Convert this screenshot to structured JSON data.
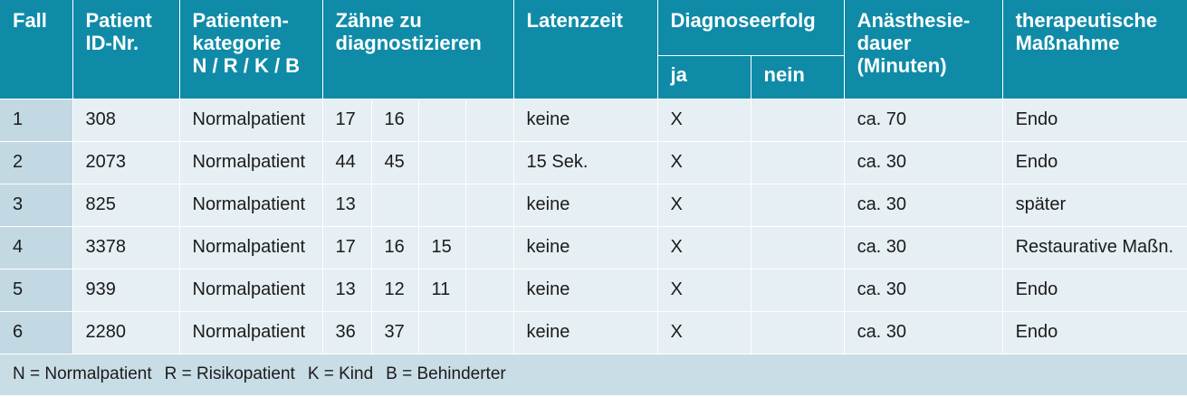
{
  "headers": {
    "fall": "Fall",
    "patient_id": [
      "Patient",
      "ID-Nr."
    ],
    "kategorie": [
      "Patienten-",
      "kategorie",
      "N / R / K / B"
    ],
    "zaehne": [
      "Zähne zu",
      "diagnostizieren"
    ],
    "latenz": "Latenzzeit",
    "diagnose": "Diagnoseerfolg",
    "ja": "ja",
    "nein": "nein",
    "anaesthesie": [
      "Anästhesie-",
      "dauer",
      "(Minuten)"
    ],
    "massnahme": [
      "therapeutische",
      "Maßnahme"
    ]
  },
  "rows": [
    {
      "fall": "1",
      "id": "308",
      "kategorie": "Normalpatient",
      "zaehne": [
        "17",
        "16",
        "",
        ""
      ],
      "latenz": "keine",
      "ja": "X",
      "nein": "",
      "dauer": "ca. 70",
      "massnahme": "Endo"
    },
    {
      "fall": "2",
      "id": "2073",
      "kategorie": "Normalpatient",
      "zaehne": [
        "44",
        "45",
        "",
        ""
      ],
      "latenz": "15 Sek.",
      "ja": "X",
      "nein": "",
      "dauer": "ca. 30",
      "massnahme": "Endo"
    },
    {
      "fall": "3",
      "id": "825",
      "kategorie": "Normalpatient",
      "zaehne": [
        "13",
        "",
        "",
        ""
      ],
      "latenz": "keine",
      "ja": "X",
      "nein": "",
      "dauer": "ca. 30",
      "massnahme": "später"
    },
    {
      "fall": "4",
      "id": "3378",
      "kategorie": "Normalpatient",
      "zaehne": [
        "17",
        "16",
        "15",
        ""
      ],
      "latenz": "keine",
      "ja": "X",
      "nein": "",
      "dauer": "ca. 30",
      "massnahme": "Restaurative Maßn."
    },
    {
      "fall": "5",
      "id": "939",
      "kategorie": "Normalpatient",
      "zaehne": [
        "13",
        "12",
        "11",
        ""
      ],
      "latenz": "keine",
      "ja": "X",
      "nein": "",
      "dauer": "ca. 30",
      "massnahme": "Endo"
    },
    {
      "fall": "6",
      "id": "2280",
      "kategorie": "Normalpatient",
      "zaehne": [
        "36",
        "37",
        "",
        ""
      ],
      "latenz": "keine",
      "ja": "X",
      "nein": "",
      "dauer": "ca. 30",
      "massnahme": "Endo"
    }
  ],
  "footer": [
    "N = Normalpatient",
    "R = Risikopatient",
    "K = Kind",
    "B = Behinderter"
  ]
}
